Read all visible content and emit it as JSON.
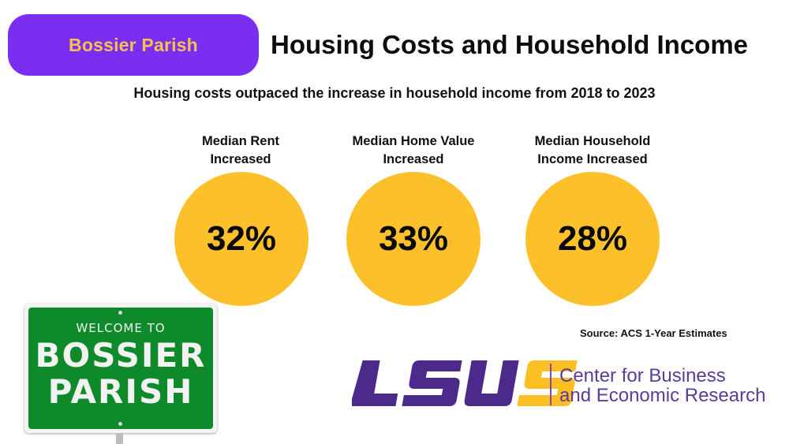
{
  "header": {
    "badge_label": "Bossier Parish",
    "title": "Housing Costs and Household Income",
    "subtitle": "Housing costs outpaced the increase in household income from 2018 to 2023"
  },
  "stats": [
    {
      "label_line1": "Median Rent",
      "label_line2": "Increased",
      "value": "32%"
    },
    {
      "label_line1": "Median Home Value",
      "label_line2": "Increased",
      "value": "33%"
    },
    {
      "label_line1": "Median Household",
      "label_line2": "Income Increased",
      "value": "28%"
    }
  ],
  "sign": {
    "welcome": "WELCOME TO",
    "line1": "BOSSIER",
    "line2": "PARISH"
  },
  "source": "Source: ACS 1-Year Estimates",
  "logo": {
    "wordmark": "LSUS",
    "org_line1": "Center for Business",
    "org_line2": "and Economic Research"
  },
  "colors": {
    "badge_bg": "#7a2ff0",
    "badge_text": "#f7c14d",
    "circle": "#fcc02b",
    "sign_green": "#0f8a2b",
    "lsus_purple": "#4b2a8c",
    "lsus_gold": "#fbbf24",
    "org_text": "#5a3d99"
  }
}
